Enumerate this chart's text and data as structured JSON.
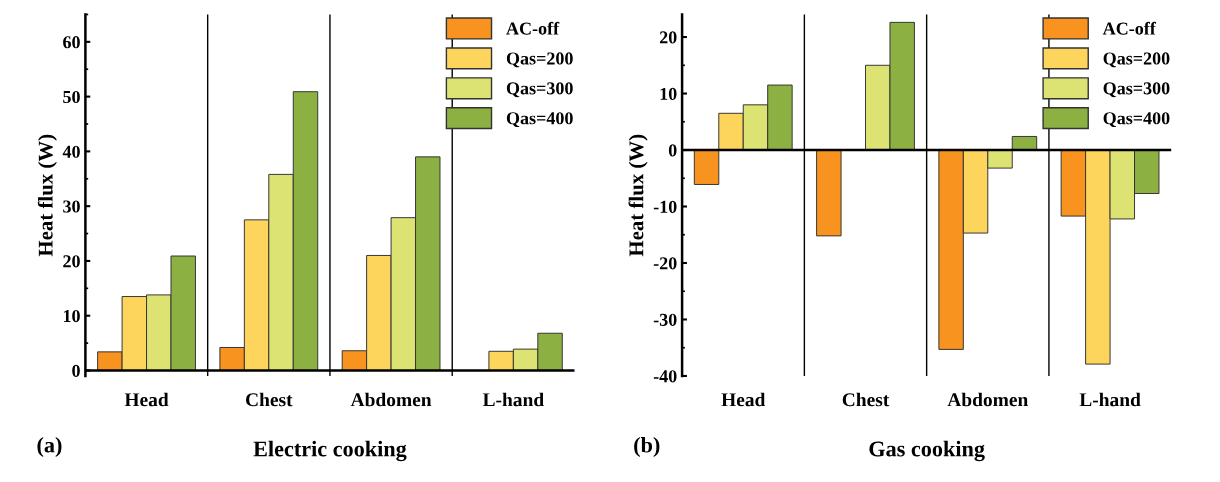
{
  "chart_data": [
    {
      "type": "bar",
      "xlabel": "Electric cooking",
      "ylabel": "Heat flux (W)",
      "annotations": [
        "(a)"
      ],
      "categories": [
        "Head",
        "Chest",
        "Abdomen",
        "L-hand"
      ],
      "series": [
        {
          "name": "AC-off",
          "color": "#f7931e",
          "values": [
            3.4,
            4.2,
            3.6,
            null
          ]
        },
        {
          "name": "Qas=200",
          "color": "#fdd55c",
          "values": [
            13.5,
            27.5,
            21.0,
            3.5
          ]
        },
        {
          "name": "Qas=300",
          "color": "#dde372",
          "values": [
            13.8,
            35.8,
            27.9,
            3.9
          ]
        },
        {
          "name": "Qas=400",
          "color": "#8db043",
          "values": [
            20.9,
            50.9,
            39.0,
            6.8
          ]
        }
      ],
      "ylim": [
        -1,
        65
      ],
      "yticks": [
        0,
        10,
        20,
        30,
        40,
        50,
        60
      ],
      "grid": false,
      "legend": "top right"
    },
    {
      "type": "bar",
      "xlabel": "Gas cooking",
      "ylabel": "Heat flux (W)",
      "annotations": [
        "(b)"
      ],
      "categories": [
        "Head",
        "Chest",
        "Abdomen",
        "L-hand"
      ],
      "series": [
        {
          "name": "AC-off",
          "color": "#f7931e",
          "values": [
            -6.1,
            -15.2,
            -35.3,
            -11.7
          ]
        },
        {
          "name": "Qas=200",
          "color": "#fdd55c",
          "values": [
            6.5,
            null,
            -14.7,
            -37.9
          ]
        },
        {
          "name": "Qas=300",
          "color": "#dde372",
          "values": [
            8.0,
            15.0,
            -3.2,
            -12.2
          ]
        },
        {
          "name": "Qas=400",
          "color": "#8db043",
          "values": [
            11.5,
            22.6,
            2.4,
            -7.7
          ]
        }
      ],
      "ylim": [
        -40,
        24
      ],
      "yticks": [
        -40,
        -30,
        -20,
        -10,
        0,
        10,
        20
      ],
      "grid": false,
      "legend": "top right"
    }
  ]
}
